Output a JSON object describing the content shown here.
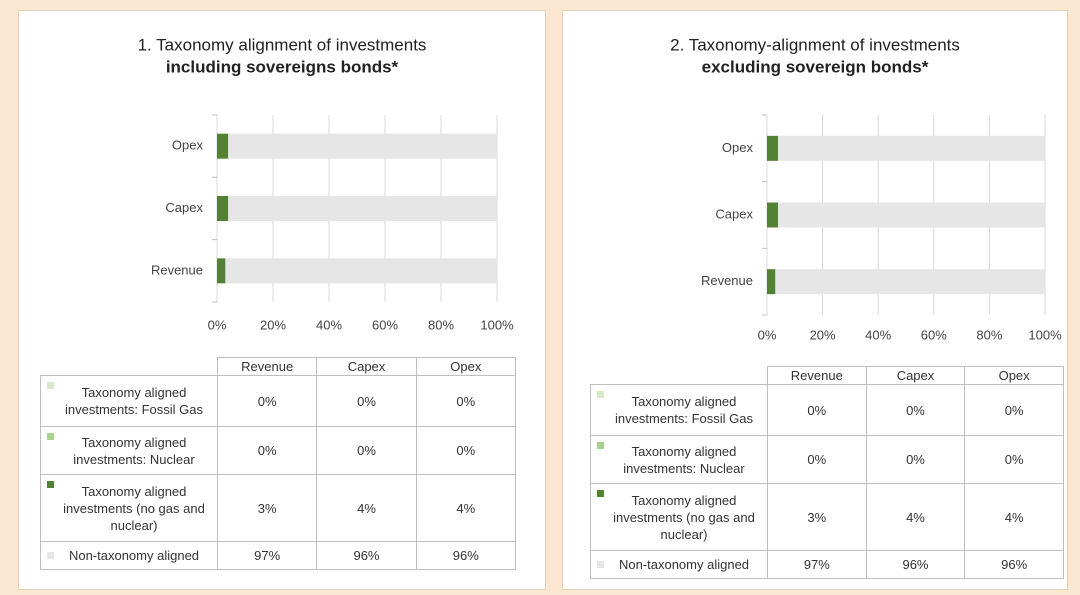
{
  "chart_data": [
    {
      "type": "bar",
      "title": "1. Taxonomy alignment of investments",
      "subtitle": "including sovereigns bonds*",
      "categories": [
        "Revenue",
        "Capex",
        "Opex"
      ],
      "series": [
        {
          "name": "Taxonomy aligned investments: Fossil Gas",
          "color": "#d5e8c8",
          "values": [
            0,
            0,
            0
          ],
          "value_labels": [
            "0%",
            "0%",
            "0%"
          ]
        },
        {
          "name": "Taxonomy aligned investments: Nuclear",
          "color": "#a9d18e",
          "values": [
            0,
            0,
            0
          ],
          "value_labels": [
            "0%",
            "0%",
            "0%"
          ]
        },
        {
          "name": "Taxonomy aligned investments (no gas and nuclear)",
          "color": "#548235",
          "values": [
            3,
            4,
            4
          ],
          "value_labels": [
            "3%",
            "4%",
            "4%"
          ]
        },
        {
          "name": "Non-taxonomy aligned",
          "color": "#e6e6e6",
          "values": [
            97,
            96,
            96
          ],
          "value_labels": [
            "97%",
            "96%",
            "96%"
          ]
        }
      ],
      "xlim": [
        0,
        100
      ],
      "xticks": [
        {
          "value": 0,
          "label": "0%"
        },
        {
          "value": 20,
          "label": "20%"
        },
        {
          "value": 40,
          "label": "40%"
        },
        {
          "value": 60,
          "label": "60%"
        },
        {
          "value": 80,
          "label": "80%"
        },
        {
          "value": 100,
          "label": "100%"
        }
      ],
      "grid": true
    },
    {
      "type": "bar",
      "title": "2. Taxonomy-alignment of investments",
      "subtitle": "excluding sovereign bonds*",
      "categories": [
        "Revenue",
        "Capex",
        "Opex"
      ],
      "series": [
        {
          "name": "Taxonomy aligned investments: Fossil Gas",
          "color": "#d5e8c8",
          "values": [
            0,
            0,
            0
          ],
          "value_labels": [
            "0%",
            "0%",
            "0%"
          ]
        },
        {
          "name": "Taxonomy aligned investments: Nuclear",
          "color": "#a9d18e",
          "values": [
            0,
            0,
            0
          ],
          "value_labels": [
            "0%",
            "0%",
            "0%"
          ]
        },
        {
          "name": "Taxonomy aligned investments (no gas and nuclear)",
          "color": "#548235",
          "values": [
            3,
            4,
            4
          ],
          "value_labels": [
            "3%",
            "4%",
            "4%"
          ]
        },
        {
          "name": "Non-taxonomy aligned",
          "color": "#e6e6e6",
          "values": [
            97,
            96,
            96
          ],
          "value_labels": [
            "97%",
            "96%",
            "96%"
          ]
        }
      ],
      "xlim": [
        0,
        100
      ],
      "xticks": [
        {
          "value": 0,
          "label": "0%"
        },
        {
          "value": 20,
          "label": "20%"
        },
        {
          "value": 40,
          "label": "40%"
        },
        {
          "value": 60,
          "label": "60%"
        },
        {
          "value": 80,
          "label": "80%"
        },
        {
          "value": 100,
          "label": "100%"
        }
      ],
      "grid": true
    }
  ]
}
